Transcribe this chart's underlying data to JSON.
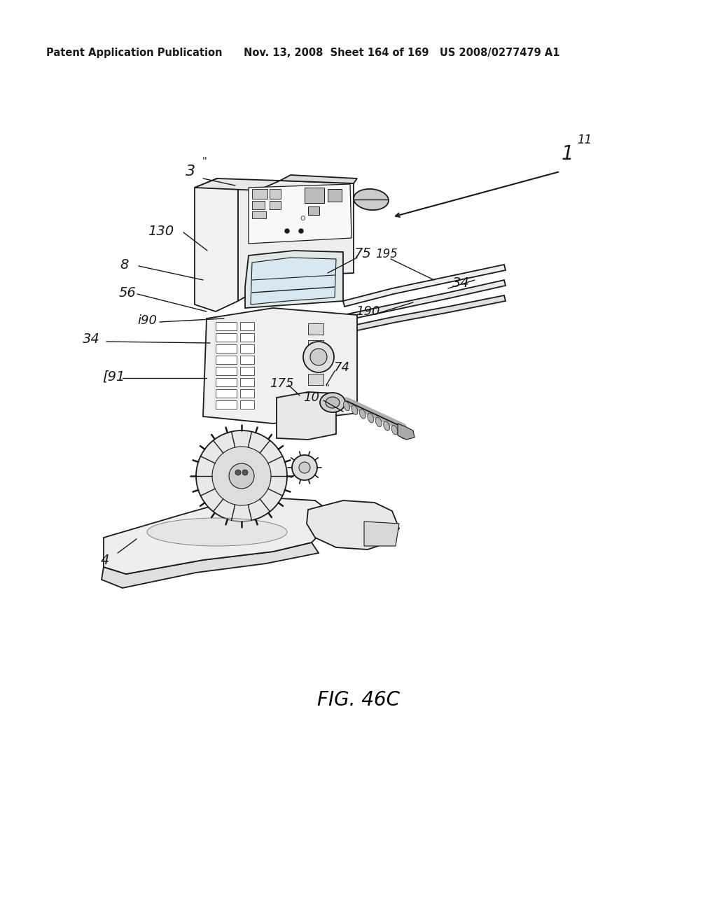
{
  "header_left": "Patent Application Publication",
  "header_right": "Nov. 13, 2008  Sheet 164 of 169   US 2008/0277479 A1",
  "figure_label": "FIG. 46C",
  "background_color": "#ffffff",
  "text_color": "#000000",
  "header_fontsize": 10.5,
  "figure_label_fontsize": 20,
  "page_width": 10.24,
  "page_height": 13.2,
  "dpi": 100
}
